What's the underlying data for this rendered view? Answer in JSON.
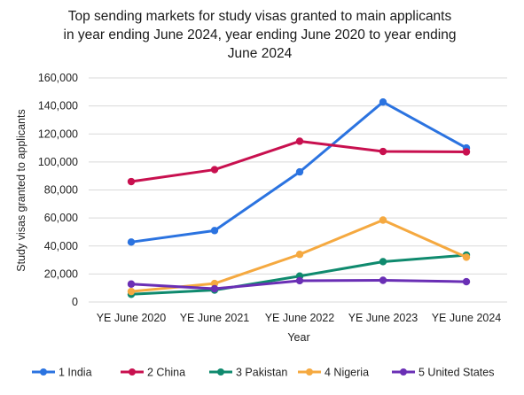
{
  "chart_data": {
    "type": "line",
    "title_lines": [
      "Top sending markets for study visas granted to main applicants",
      "in year ending June 2024, year ending June 2020 to year ending",
      "June 2024"
    ],
    "xlabel": "Year",
    "ylabel": "Study visas granted to applicants",
    "categories": [
      "YE June 2020",
      "YE June 2021",
      "YE June 2022",
      "YE June 2023",
      "YE June 2024"
    ],
    "ylim": [
      0,
      160000
    ],
    "yticks": [
      0,
      20000,
      40000,
      60000,
      80000,
      100000,
      120000,
      140000,
      160000
    ],
    "ytick_labels": [
      "0",
      "20,000",
      "40,000",
      "60,000",
      "80,000",
      "100,000",
      "120,000",
      "140,000",
      "160,000"
    ],
    "grid": true,
    "legend_position": "bottom",
    "series": [
      {
        "name": "1 India",
        "color": "#2b73e0",
        "values": [
          42800,
          51000,
          92900,
          142800,
          110000
        ]
      },
      {
        "name": "2 China",
        "color": "#c8104f",
        "values": [
          86000,
          94500,
          114800,
          107500,
          107200
        ]
      },
      {
        "name": "3 Pakistan",
        "color": "#0f8a6e",
        "values": [
          5500,
          8500,
          18500,
          28800,
          33500
        ]
      },
      {
        "name": "4 Nigeria",
        "color": "#f5a940",
        "values": [
          7500,
          13200,
          34000,
          58500,
          32000
        ]
      },
      {
        "name": "5 United States",
        "color": "#6a2fb5",
        "values": [
          12800,
          9500,
          15200,
          15500,
          14500
        ]
      }
    ]
  }
}
